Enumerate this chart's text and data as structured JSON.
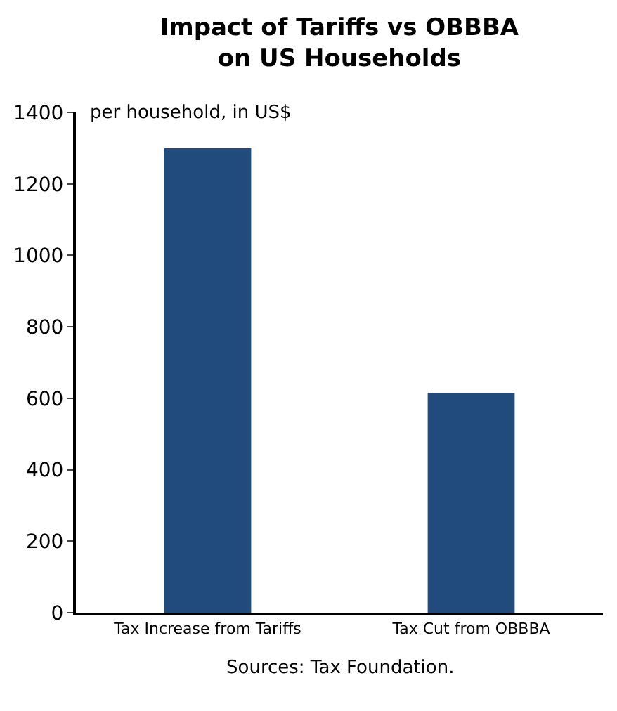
{
  "chart_data": {
    "type": "bar",
    "title": "Impact of Tariffs vs OBBBA on US Households",
    "ylabel": "per household, in US$",
    "categories": [
      "Tax Increase from Tariffs",
      "Tax Cut from OBBBA"
    ],
    "values": [
      1300,
      615
    ],
    "color": "#214b7c",
    "ylim": [
      0,
      1400
    ],
    "yticks": [
      0,
      200,
      400,
      600,
      800,
      1000,
      1200,
      1400
    ],
    "annotations": [
      "Sources: Tax Foundation."
    ]
  }
}
